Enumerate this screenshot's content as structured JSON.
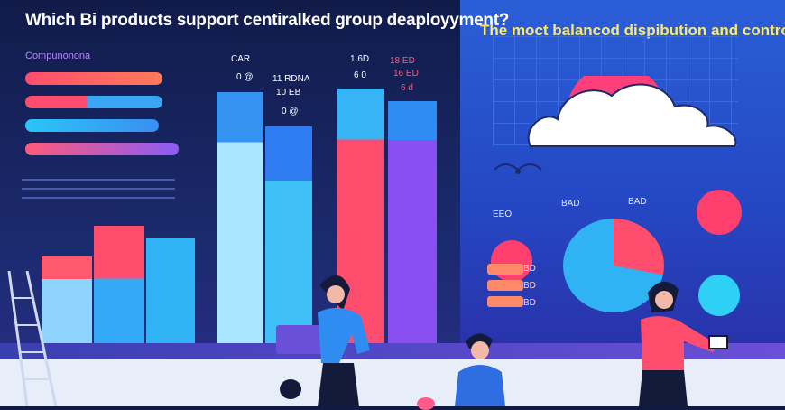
{
  "header": {
    "left_title": "Which Bi products support centiralked group deaployyment?",
    "right_title": "The moct balancod dispibution and control!"
  },
  "left_panel": {
    "legend_label": "Compunonona",
    "labels": {
      "car": "CAR",
      "l1": "11 RDNA",
      "l2": "10 EB",
      "l3": "0 @",
      "bd": "1 6D",
      "bd2": "6 0",
      "p1": "18 ED",
      "p2": "16 ED",
      "p3": "6 d"
    }
  },
  "right_panel": {
    "labels": {
      "eo": "EEO",
      "ba1": "BAD",
      "ba2": "BAD"
    },
    "tags": [
      "BD",
      "BD",
      "BD"
    ]
  },
  "colors": {
    "pink": "#ff4d6d",
    "cyan": "#29b6f6",
    "purple": "#8a5cf6",
    "blue": "#2f7cf0"
  }
}
